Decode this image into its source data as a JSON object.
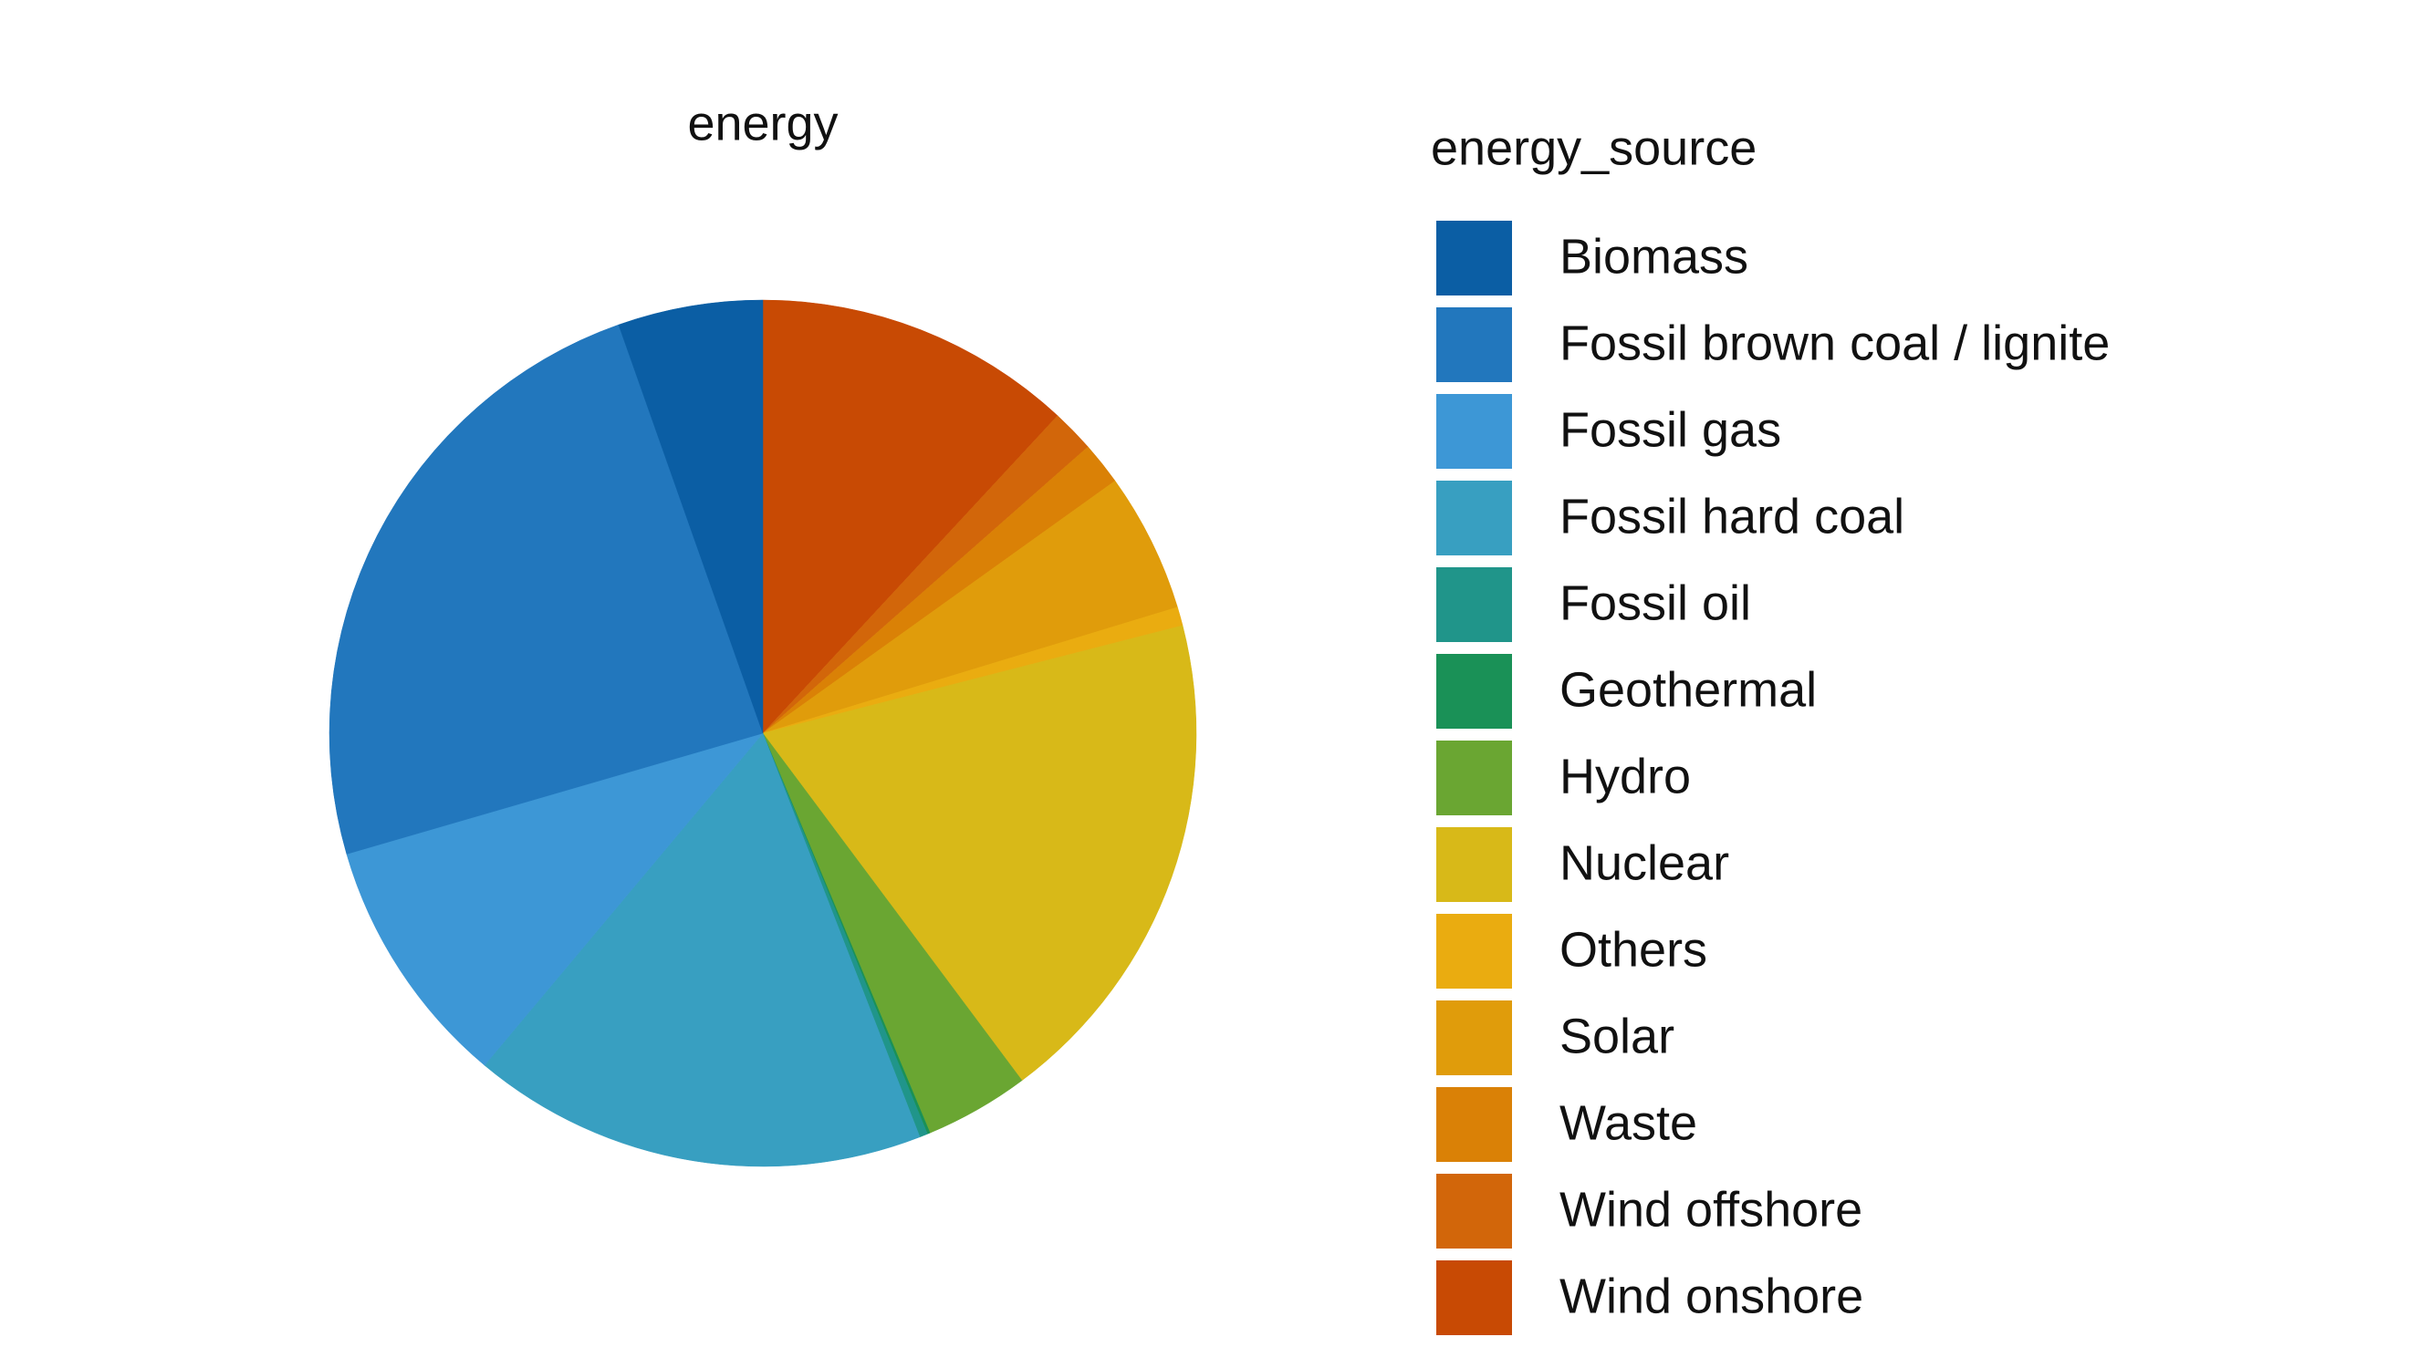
{
  "chart_data": {
    "type": "pie",
    "title": "energy",
    "legend_title": "energy_source",
    "categories": [
      "Biomass",
      "Fossil brown coal / lignite",
      "Fossil gas",
      "Fossil hard coal",
      "Fossil oil",
      "Geothermal",
      "Hydro",
      "Nuclear",
      "Others",
      "Solar",
      "Waste",
      "Wind offshore",
      "Wind onshore"
    ],
    "values": [
      5.4,
      24.1,
      9.4,
      17.0,
      0.3,
      0.1,
      3.9,
      18.8,
      0.7,
      5.2,
      1.6,
      1.6,
      11.9
    ],
    "colors": [
      "#0b5ea4",
      "#2277bd",
      "#3d97d6",
      "#389fc1",
      "#20958a",
      "#1a9157",
      "#6aa632",
      "#d8b918",
      "#eaac10",
      "#e09c0b",
      "#da8106",
      "#d2660a",
      "#c84a04"
    ],
    "legend": "right"
  }
}
